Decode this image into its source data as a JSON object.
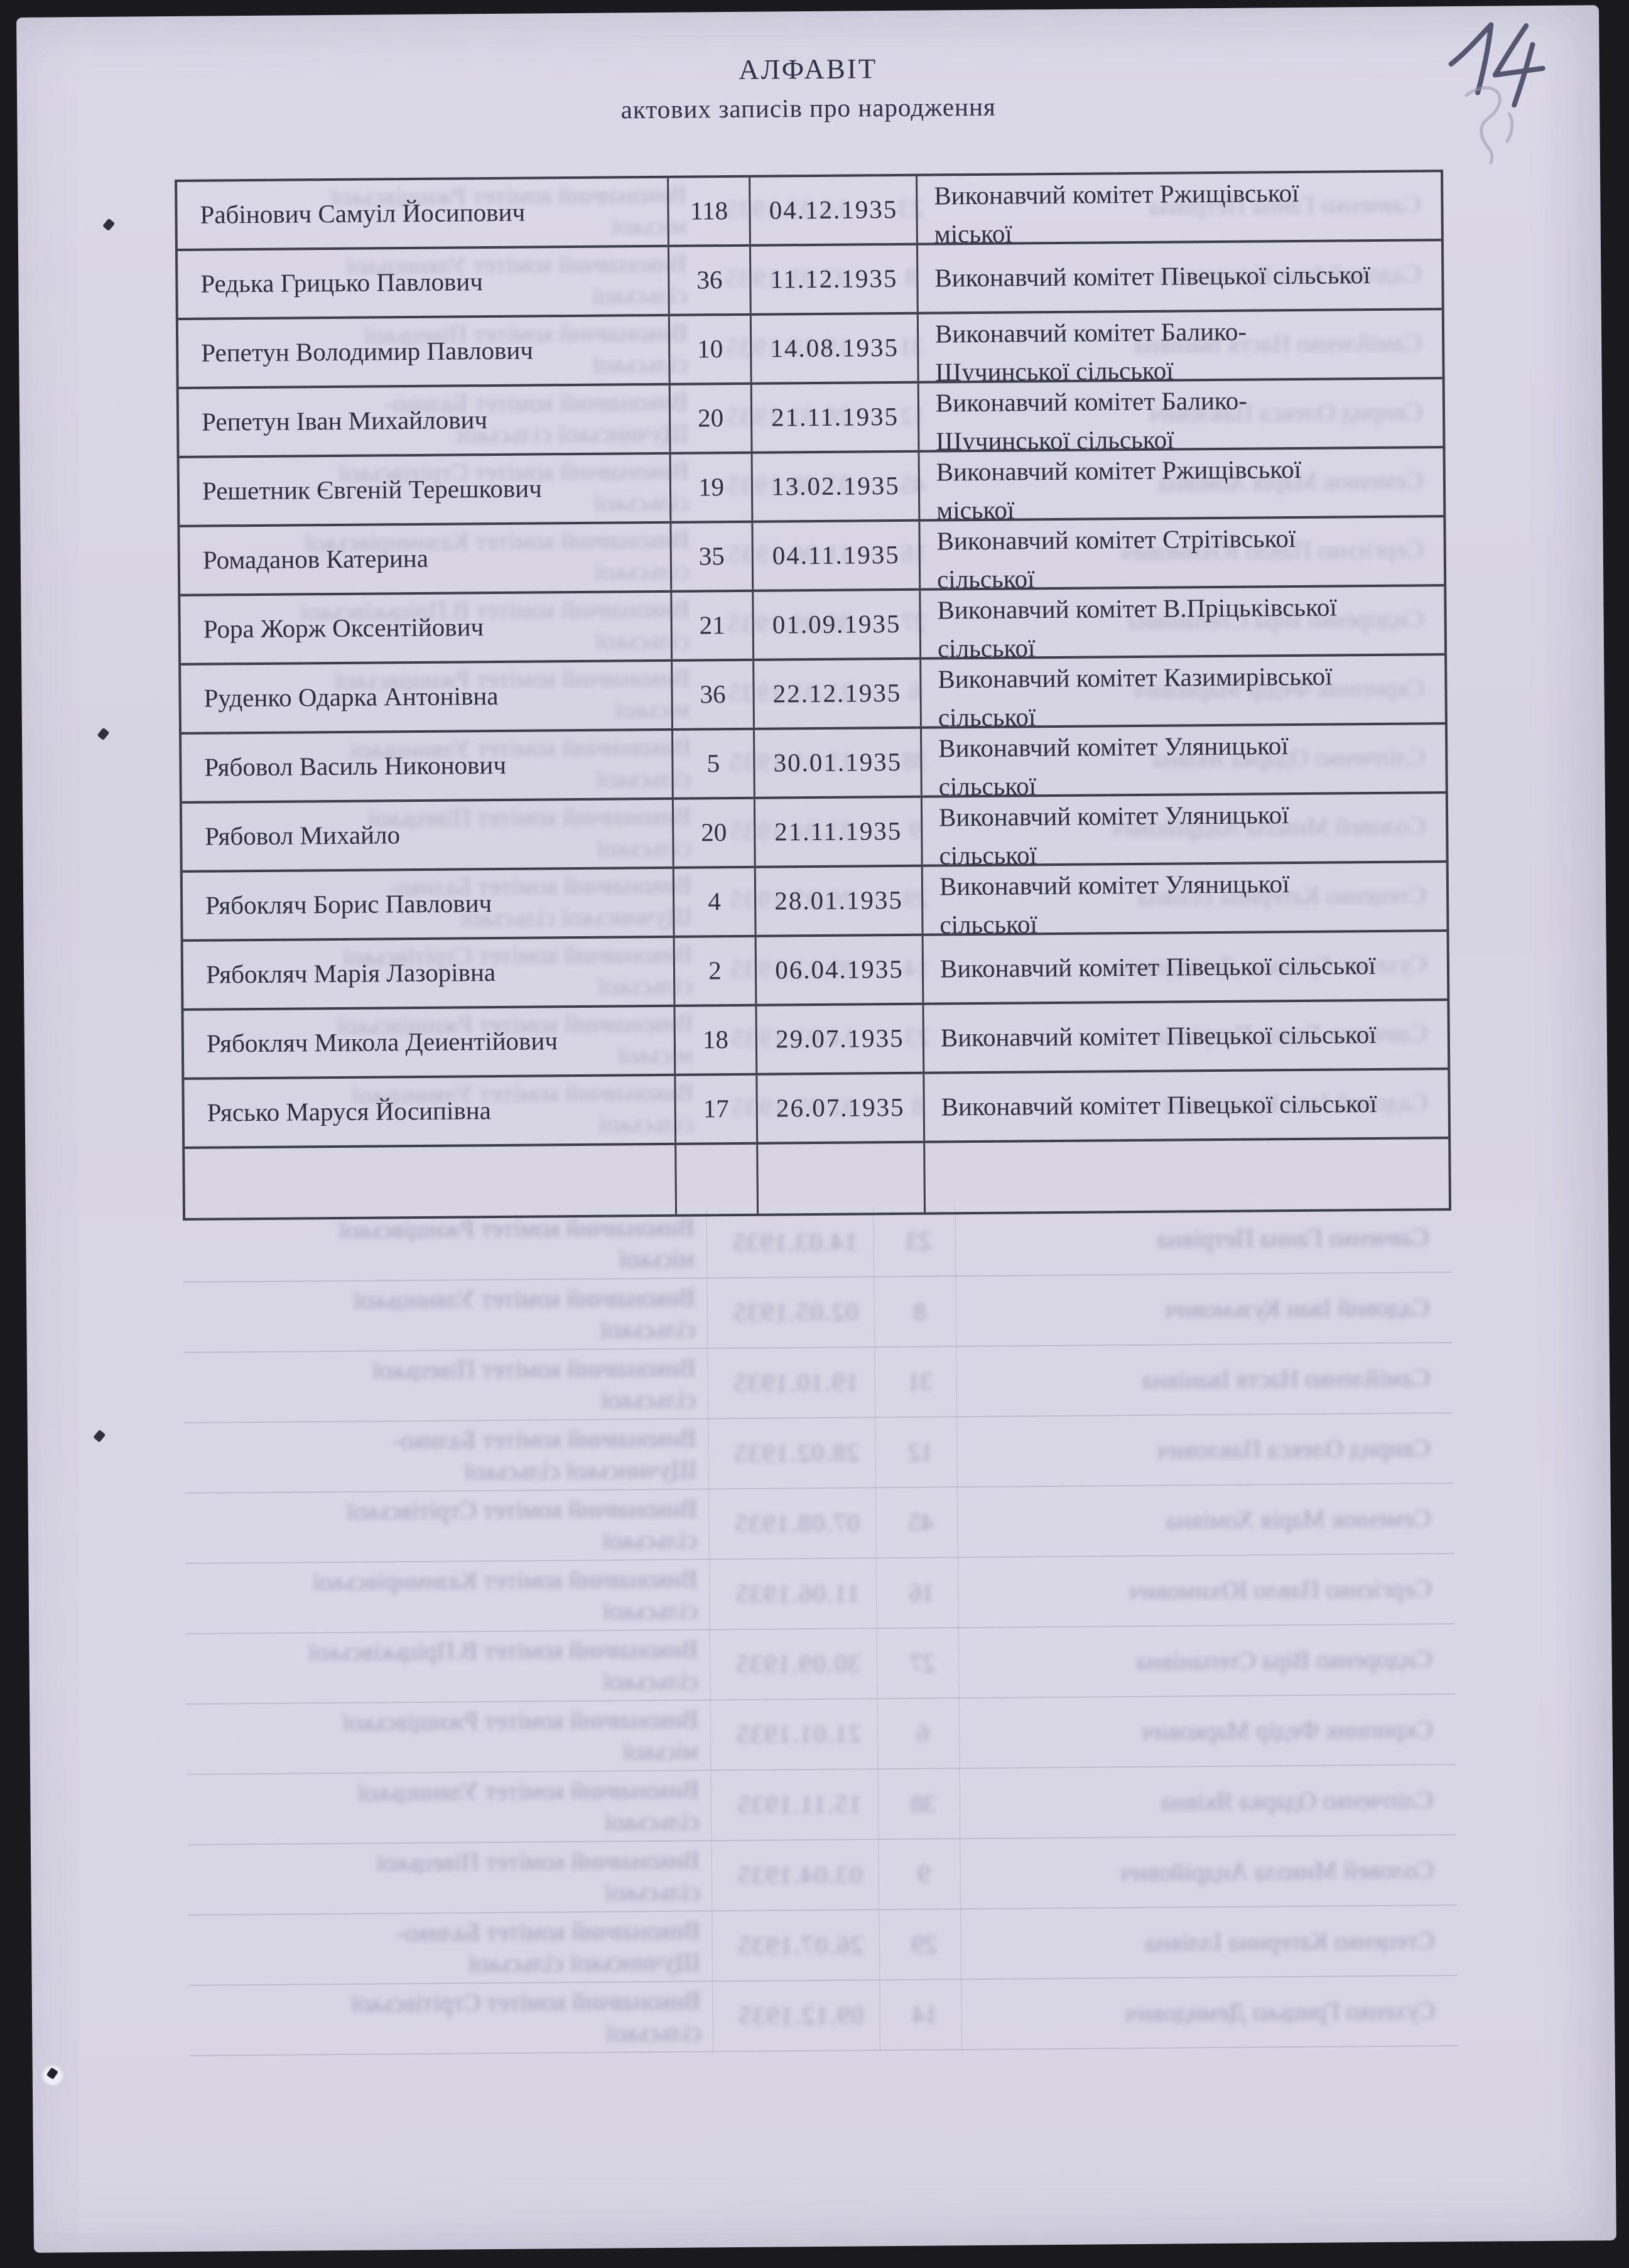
{
  "document": {
    "title": "АЛФАВІТ",
    "subtitle": "актових записів про народження",
    "page_number_handwritten": "14"
  },
  "table": {
    "rows": [
      {
        "name": "Рабінович Самуіл Йосипович",
        "record_number": "118",
        "date": "04.12.1935",
        "authority_line1": "Виконавчий комітет Ржищівської",
        "authority_line2": "міської"
      },
      {
        "name": "Редька Грицько Павлович",
        "record_number": "36",
        "date": "11.12.1935",
        "authority_line1": "Виконавчий комітет Півецької сільської",
        "authority_line2": ""
      },
      {
        "name": "Репетун Володимир Павлович",
        "record_number": "10",
        "date": "14.08.1935",
        "authority_line1": "Виконавчий комітет Балико-",
        "authority_line2": "Щучинської сільської"
      },
      {
        "name": "Репетун Іван Михайлович",
        "record_number": "20",
        "date": "21.11.1935",
        "authority_line1": "Виконавчий комітет Балико-",
        "authority_line2": "Щучинської сільської"
      },
      {
        "name": "Решетник Євгеній Терешкович",
        "record_number": "19",
        "date": "13.02.1935",
        "authority_line1": "Виконавчий комітет Ржищівської",
        "authority_line2": "міської"
      },
      {
        "name": "Ромаданов Катерина",
        "record_number": "35",
        "date": "04.11.1935",
        "authority_line1": "Виконавчий комітет Стрітівської",
        "authority_line2": "сільської"
      },
      {
        "name": "Рора Жорж Оксентійович",
        "record_number": "21",
        "date": "01.09.1935",
        "authority_line1": "Виконавчий комітет В.Пріцьківської",
        "authority_line2": "сільської"
      },
      {
        "name": "Руденко Одарка Антонівна",
        "record_number": "36",
        "date": "22.12.1935",
        "authority_line1": "Виконавчий комітет Казимирівської",
        "authority_line2": "сільської"
      },
      {
        "name": "Рябовол Василь Никонович",
        "record_number": "5",
        "date": "30.01.1935",
        "authority_line1": "Виконавчий комітет Уляницької",
        "authority_line2": "сільської"
      },
      {
        "name": "Рябовол Михайло",
        "record_number": "20",
        "date": "21.11.1935",
        "authority_line1": "Виконавчий комітет Уляницької",
        "authority_line2": "сільської"
      },
      {
        "name": "Рябокляч Борис Павлович",
        "record_number": "4",
        "date": "28.01.1935",
        "authority_line1": "Виконавчий комітет Уляницької",
        "authority_line2": "сільської"
      },
      {
        "name": "Рябокляч Марія Лазорівна",
        "record_number": "2",
        "date": "06.04.1935",
        "authority_line1": "Виконавчий комітет Півецької сільської",
        "authority_line2": ""
      },
      {
        "name": "Рябокляч Микола Деиентійович",
        "record_number": "18",
        "date": "29.07.1935",
        "authority_line1": "Виконавчий комітет Півецької сільської",
        "authority_line2": ""
      },
      {
        "name": "Рясько Маруся Йосипівна",
        "record_number": "17",
        "date": "26.07.1935",
        "authority_line1": "Виконавчий комітет Півецької сільської",
        "authority_line2": ""
      }
    ]
  },
  "bleedthrough_simulation": {
    "note": "illegible mirrored reverse-side table showing through the paper",
    "rows": [
      {
        "name": "Савченко Ганна Петрівна",
        "num": "23",
        "date": "14.03.1935",
        "auth1": "Виконавчий комітет Ржищівської",
        "auth2": "міської"
      },
      {
        "name": "Садовий Іван Кузьмович",
        "num": "8",
        "date": "02.05.1935",
        "auth1": "Виконавчий комітет Уляницької",
        "auth2": "сільської"
      },
      {
        "name": "Самійленко Настя Іванівна",
        "num": "31",
        "date": "19.10.1935",
        "auth1": "Виконавчий комітет Півецької",
        "auth2": "сільської"
      },
      {
        "name": "Свирид Олекса Павлович",
        "num": "12",
        "date": "28.02.1935",
        "auth1": "Виконавчий комітет Балико-",
        "auth2": "Щучинської сільської"
      },
      {
        "name": "Семенюк Марія Хомівна",
        "num": "45",
        "date": "07.08.1935",
        "auth1": "Виконавчий комітет Стрітівської",
        "auth2": "сільської"
      },
      {
        "name": "Сергієнко Павло Юхимович",
        "num": "16",
        "date": "11.06.1935",
        "auth1": "Виконавчий комітет Казимирівської",
        "auth2": "сільської"
      },
      {
        "name": "Сидоренко Віра Степанівна",
        "num": "27",
        "date": "30.09.1935",
        "auth1": "Виконавчий комітет В.Пріцьківської",
        "auth2": "сільської"
      },
      {
        "name": "Скрипник Федір Маркович",
        "num": "6",
        "date": "21.01.1935",
        "auth1": "Виконавчий комітет Ржищівської",
        "auth2": "міської"
      },
      {
        "name": "Сліпченко Одарка Яківна",
        "num": "38",
        "date": "15.11.1935",
        "auth1": "Виконавчий комітет Уляницької",
        "auth2": "сільської"
      },
      {
        "name": "Соловей Микола Андрійович",
        "num": "9",
        "date": "03.04.1935",
        "auth1": "Виконавчий комітет Півецької",
        "auth2": "сільської"
      },
      {
        "name": "Стеценко Катерина Іллівна",
        "num": "29",
        "date": "26.07.1935",
        "auth1": "Виконавчий комітет Балико-",
        "auth2": "Щучинської сільської"
      },
      {
        "name": "Сухенко Грицько Демидович",
        "num": "14",
        "date": "09.12.1935",
        "auth1": "Виконавчий комітет Стрітівської",
        "auth2": "сільської"
      }
    ]
  },
  "colors": {
    "paper": "#d8d5e4",
    "scan_bed": "#1a191d",
    "table_line": "#3f3e4c",
    "ink": "#302f40",
    "handwriting_ink": "#4a4d69",
    "ghost_text": "#75719a"
  }
}
